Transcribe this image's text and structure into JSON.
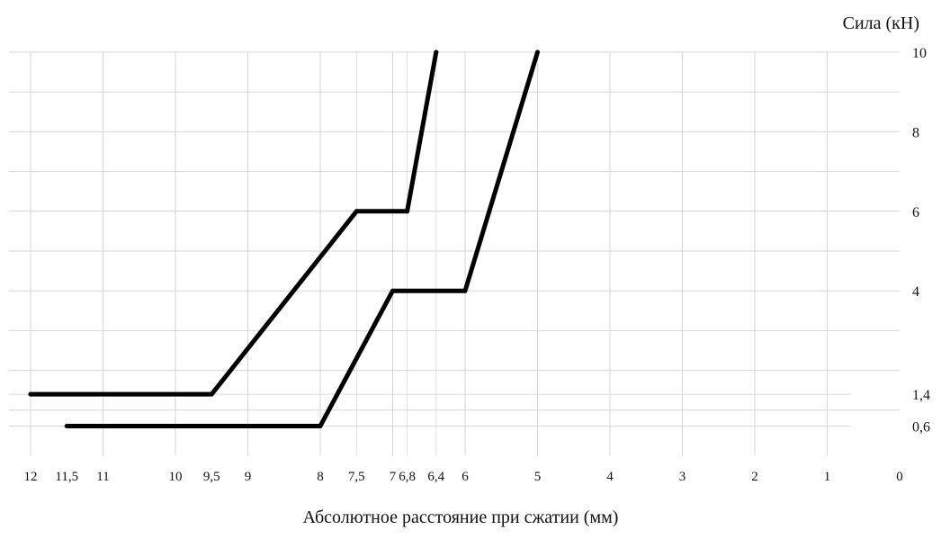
{
  "chart_data": {
    "type": "line",
    "title": "",
    "ylabel": "Сила (кН)",
    "xlabel": "Абсолютное расстояние при сжатии (мм)",
    "x_reversed": true,
    "xlim": [
      12,
      0
    ],
    "ylim": [
      0,
      10
    ],
    "grid": true,
    "legend": "none",
    "x_ticks": [
      {
        "value": 12,
        "label": "12"
      },
      {
        "value": 11.5,
        "label": "11,5"
      },
      {
        "value": 11,
        "label": "11"
      },
      {
        "value": 10,
        "label": "10"
      },
      {
        "value": 9.5,
        "label": "9,5"
      },
      {
        "value": 9,
        "label": "9"
      },
      {
        "value": 8,
        "label": "8"
      },
      {
        "value": 7.5,
        "label": "7,5"
      },
      {
        "value": 7,
        "label": "7"
      },
      {
        "value": 6.8,
        "label": "6,8"
      },
      {
        "value": 6.4,
        "label": "6,4"
      },
      {
        "value": 6,
        "label": "6"
      },
      {
        "value": 5,
        "label": "5"
      },
      {
        "value": 4,
        "label": "4"
      },
      {
        "value": 3,
        "label": "3"
      },
      {
        "value": 2,
        "label": "2"
      },
      {
        "value": 1,
        "label": "1"
      },
      {
        "value": 0,
        "label": "0"
      }
    ],
    "y_ticks": [
      {
        "value": 10,
        "label": "10"
      },
      {
        "value": 8,
        "label": "8"
      },
      {
        "value": 6,
        "label": "6"
      },
      {
        "value": 4,
        "label": "4"
      },
      {
        "value": 1.4,
        "label": "1,4"
      },
      {
        "value": 0.6,
        "label": "0,6"
      }
    ],
    "series": [
      {
        "color": "#000000",
        "x": [
          12,
          9.5,
          7.5,
          6.8,
          6.4
        ],
        "y": [
          1.4,
          1.4,
          6,
          6,
          10
        ]
      },
      {
        "color": "#000000",
        "x": [
          11.5,
          8,
          7,
          6,
          5
        ],
        "y": [
          0.6,
          0.6,
          4,
          4,
          10
        ]
      }
    ]
  }
}
